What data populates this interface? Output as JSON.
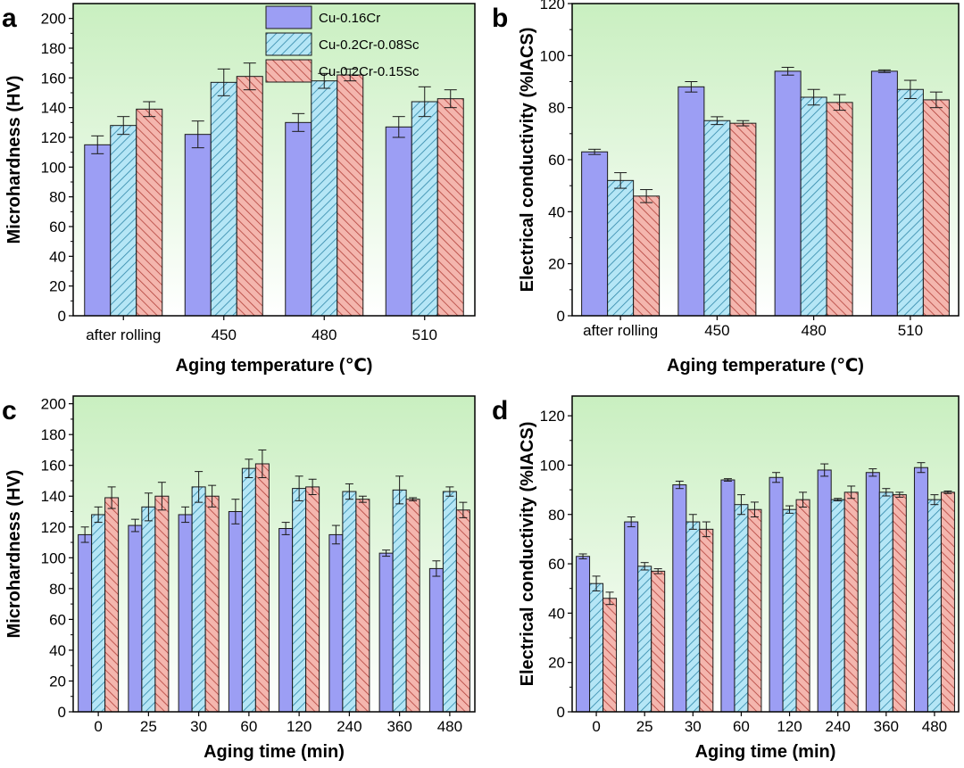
{
  "colors": {
    "plot_background_top": "#c9efc0",
    "plot_background_bottom": "#ffffff",
    "series_fills": [
      "#9c9ef4",
      "#b5e6f6",
      "#f4b6ae"
    ],
    "series_hatch": [
      "",
      "#2f86a8",
      "#b2403a"
    ]
  },
  "legend_entries": [
    "Cu-0.16Cr",
    "Cu-0.2Cr-0.08Sc",
    "Cu-0.2Cr-0.15Sc"
  ],
  "chart_data": [
    {
      "panel": "a",
      "type": "bar",
      "xlabel": "Aging temperature (℃)",
      "ylabel": "Microhardness (HV)",
      "ylim": [
        0,
        210
      ],
      "yticks": [
        0,
        20,
        40,
        60,
        80,
        100,
        120,
        140,
        160,
        180,
        200
      ],
      "categories": [
        "after rolling",
        "450",
        "480",
        "510"
      ],
      "series": [
        {
          "name": "Cu-0.16Cr",
          "values": [
            115,
            122,
            130,
            127
          ],
          "errors": [
            6,
            9,
            6,
            7
          ]
        },
        {
          "name": "Cu-0.2Cr-0.08Sc",
          "values": [
            128,
            157,
            158,
            144
          ],
          "errors": [
            6,
            9,
            5,
            10
          ]
        },
        {
          "name": "Cu-0.2Cr-0.15Sc",
          "values": [
            139,
            161,
            162,
            146
          ],
          "errors": [
            5,
            9,
            4,
            6
          ]
        }
      ],
      "legend": "top-right"
    },
    {
      "panel": "b",
      "type": "bar",
      "xlabel": "Aging temperature (℃)",
      "ylabel": "Electrical conductivity (%IACS)",
      "ylim": [
        0,
        120
      ],
      "yticks": [
        0,
        20,
        40,
        60,
        80,
        100,
        120
      ],
      "categories": [
        "after rolling",
        "450",
        "480",
        "510"
      ],
      "series": [
        {
          "name": "Cu-0.16Cr",
          "values": [
            63,
            88,
            94,
            94
          ],
          "errors": [
            1,
            2,
            1.5,
            0.5
          ]
        },
        {
          "name": "Cu-0.2Cr-0.08Sc",
          "values": [
            52,
            75,
            84,
            87
          ],
          "errors": [
            3,
            1.5,
            3,
            3.5
          ]
        },
        {
          "name": "Cu-0.2Cr-0.15Sc",
          "values": [
            46,
            74,
            82,
            83
          ],
          "errors": [
            2.5,
            1,
            3,
            3
          ]
        }
      ]
    },
    {
      "panel": "c",
      "type": "bar",
      "xlabel": "Aging time (min)",
      "ylabel": "Microhardness (HV)",
      "ylim": [
        0,
        205
      ],
      "yticks": [
        0,
        20,
        40,
        60,
        80,
        100,
        120,
        140,
        160,
        180,
        200
      ],
      "categories": [
        "0",
        "25",
        "30",
        "60",
        "120",
        "240",
        "360",
        "480"
      ],
      "series": [
        {
          "name": "Cu-0.16Cr",
          "values": [
            115,
            121,
            128,
            130,
            119,
            115,
            103,
            93
          ],
          "errors": [
            5,
            4,
            5,
            8,
            4,
            6,
            2,
            5
          ]
        },
        {
          "name": "Cu-0.2Cr-0.08Sc",
          "values": [
            128,
            133,
            146,
            158,
            145,
            143,
            144,
            143
          ],
          "errors": [
            5,
            9,
            10,
            6,
            8,
            5,
            9,
            3
          ]
        },
        {
          "name": "Cu-0.2Cr-0.15Sc",
          "values": [
            139,
            140,
            140,
            161,
            146,
            138,
            138,
            131
          ],
          "errors": [
            7,
            9,
            7,
            9,
            5,
            2,
            1,
            5
          ]
        }
      ]
    },
    {
      "panel": "d",
      "type": "bar",
      "xlabel": "Aging time (min)",
      "ylabel": "Electrical conductivity (%IACS)",
      "ylim": [
        0,
        128
      ],
      "yticks": [
        0,
        20,
        40,
        60,
        80,
        100,
        120
      ],
      "categories": [
        "0",
        "25",
        "30",
        "60",
        "120",
        "240",
        "360",
        "480"
      ],
      "series": [
        {
          "name": "Cu-0.16Cr",
          "values": [
            63,
            77,
            92,
            94,
            95,
            98,
            97,
            99
          ],
          "errors": [
            1,
            2,
            1.5,
            0.5,
            2,
            2.5,
            1.5,
            2
          ]
        },
        {
          "name": "Cu-0.2Cr-0.08Sc",
          "values": [
            52,
            59,
            77,
            84,
            82,
            86,
            89,
            86
          ],
          "errors": [
            3,
            1.5,
            3,
            4,
            1.5,
            0.5,
            1.5,
            2
          ]
        },
        {
          "name": "Cu-0.2Cr-0.15Sc",
          "values": [
            46,
            57,
            74,
            82,
            86,
            89,
            88,
            89
          ],
          "errors": [
            2.5,
            1,
            3,
            3,
            3,
            2.5,
            1,
            0.5
          ]
        }
      ]
    }
  ]
}
